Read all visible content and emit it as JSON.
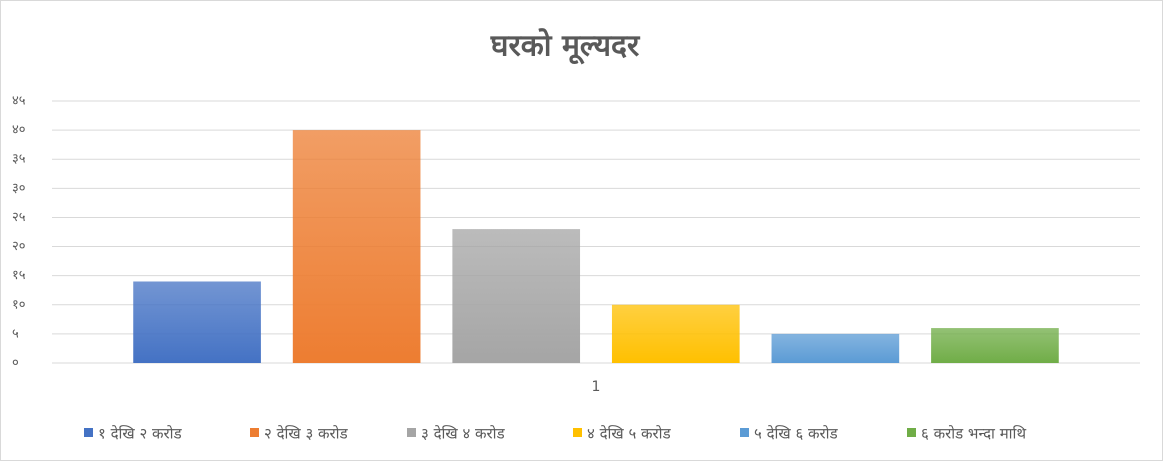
{
  "chart_data": {
    "type": "bar",
    "title": "घरको मूल्यदर",
    "categories": [
      "1"
    ],
    "series": [
      {
        "name": "१ देखि २ करोड",
        "color": "#4472c4",
        "values": [
          14
        ]
      },
      {
        "name": "२ देखि ३ करोड",
        "color": "#ed7d31",
        "values": [
          40
        ]
      },
      {
        "name": "३ देखि ४ करोड",
        "color": "#a5a5a5",
        "values": [
          23
        ]
      },
      {
        "name": "४ देखि ५ करोड",
        "color": "#ffc000",
        "values": [
          10
        ]
      },
      {
        "name": "५ देखि ६ करोड",
        "color": "#5b9bd5",
        "values": [
          5
        ]
      },
      {
        "name": "६ करोड भन्दा माथि",
        "color": "#70ad47",
        "values": [
          6
        ]
      }
    ],
    "ylim": [
      0,
      45
    ],
    "yticks": [
      {
        "value": 0,
        "label": "०"
      },
      {
        "value": 5,
        "label": "५"
      },
      {
        "value": 10,
        "label": "१०"
      },
      {
        "value": 15,
        "label": "१५"
      },
      {
        "value": 20,
        "label": "२०"
      },
      {
        "value": 25,
        "label": "२५"
      },
      {
        "value": 30,
        "label": "३०"
      },
      {
        "value": 35,
        "label": "३५"
      },
      {
        "value": 40,
        "label": "४०"
      },
      {
        "value": 45,
        "label": "४५"
      }
    ],
    "grid": true,
    "legend": "bottom"
  }
}
